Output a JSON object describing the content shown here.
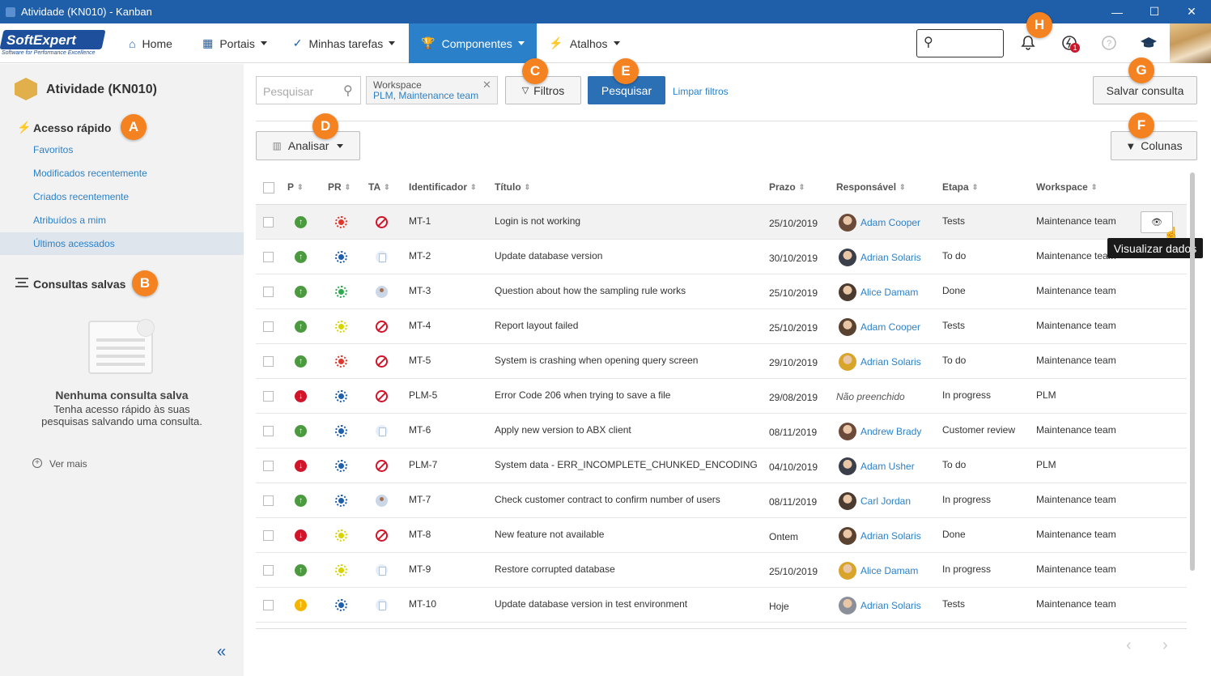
{
  "window": {
    "title": "Atividade (KN010) - Kanban",
    "minimize": "—",
    "maximize": "☐",
    "close": "✕"
  },
  "nav": {
    "logo_text": "SoftExpert",
    "logo_tagline": "Software for Performance Excellence",
    "items": [
      {
        "label": "Home"
      },
      {
        "label": "Portais"
      },
      {
        "label": "Minhas tarefas"
      },
      {
        "label": "Componentes"
      },
      {
        "label": "Atalhos"
      }
    ],
    "notification_count": "1"
  },
  "sidebar": {
    "title": "Atividade (KN010)",
    "quick_access": "Acesso rápido",
    "links": [
      "Favoritos",
      "Modificados recentemente",
      "Criados recentemente",
      "Atribuídos a mim",
      "Últimos acessados"
    ],
    "saved_queries": "Consultas salvas",
    "empty_title": "Nenhuma consulta salva",
    "empty_text_1": "Tenha acesso rápido às suas",
    "empty_text_2": "pesquisas salvando uma consulta.",
    "more": "Ver mais"
  },
  "toolbar": {
    "search_placeholder": "Pesquisar",
    "chip_label": "Workspace",
    "chip_value": "PLM, Maintenance team",
    "filters": "Filtros",
    "search": "Pesquisar",
    "clear": "Limpar filtros",
    "save_query": "Salvar consulta",
    "analyze": "Analisar",
    "columns": "Colunas"
  },
  "badges": [
    "A",
    "B",
    "C",
    "D",
    "E",
    "F",
    "G",
    "H"
  ],
  "table": {
    "headers": [
      "P",
      "PR",
      "TA",
      "Identificador",
      "Título",
      "Prazo",
      "Responsável",
      "Etapa",
      "Workspace"
    ],
    "rows": [
      {
        "p": "up",
        "pr": "red",
        "ta": "block",
        "id": "MT-1",
        "title": "Login is not working",
        "due": "25/10/2019",
        "resp": "Adam Cooper",
        "stage": "Tests",
        "ws": "Maintenance team"
      },
      {
        "p": "up",
        "pr": "blue",
        "ta": "doc",
        "id": "MT-2",
        "title": "Update database version",
        "due": "30/10/2019",
        "resp": "Adrian Solaris",
        "stage": "To do",
        "ws": "Maintenance team"
      },
      {
        "p": "up",
        "pr": "green",
        "ta": "user",
        "id": "MT-3",
        "title": "Question about how the sampling rule works",
        "due": "25/10/2019",
        "resp": "Alice Damam",
        "stage": "Done",
        "ws": "Maintenance team"
      },
      {
        "p": "up",
        "pr": "yellow",
        "ta": "block",
        "id": "MT-4",
        "title": "Report layout failed",
        "due": "25/10/2019",
        "resp": "Adam Cooper",
        "stage": "Tests",
        "ws": "Maintenance team"
      },
      {
        "p": "up",
        "pr": "red",
        "ta": "block",
        "id": "MT-5",
        "title": "System is crashing when opening query screen",
        "due": "29/10/2019",
        "resp": "Adrian Solaris",
        "stage": "To do",
        "ws": "Maintenance team"
      },
      {
        "p": "down",
        "pr": "blue",
        "ta": "block",
        "id": "PLM-5",
        "title": "Error Code 206 when trying to save a file",
        "due": "29/08/2019",
        "resp": "Não preenchido",
        "stage": "In progress",
        "ws": "PLM"
      },
      {
        "p": "up",
        "pr": "blue",
        "ta": "doc",
        "id": "MT-6",
        "title": "Apply new version to ABX client",
        "due": "08/11/2019",
        "resp": "Andrew Brady",
        "stage": "Customer review",
        "ws": "Maintenance team"
      },
      {
        "p": "down",
        "pr": "blue",
        "ta": "block",
        "id": "PLM-7",
        "title": "System data - ERR_INCOMPLETE_CHUNKED_ENCODING",
        "due": "04/10/2019",
        "resp": "Adam Usher",
        "stage": "To do",
        "ws": "PLM"
      },
      {
        "p": "up",
        "pr": "blue",
        "ta": "user",
        "id": "MT-7",
        "title": "Check customer contract to confirm number of users",
        "due": "08/11/2019",
        "resp": "Carl Jordan",
        "stage": "In progress",
        "ws": "Maintenance team"
      },
      {
        "p": "down",
        "pr": "yellow",
        "ta": "block",
        "id": "MT-8",
        "title": "New feature not available",
        "due": "Ontem",
        "resp": "Adrian Solaris",
        "stage": "Done",
        "ws": "Maintenance team"
      },
      {
        "p": "up",
        "pr": "yellow",
        "ta": "doc",
        "id": "MT-9",
        "title": "Restore corrupted database",
        "due": "25/10/2019",
        "resp": "Alice Damam",
        "stage": "In progress",
        "ws": "Maintenance team"
      },
      {
        "p": "warn",
        "pr": "blue",
        "ta": "doc",
        "id": "MT-10",
        "title": "Update database version in test environment",
        "due": "Hoje",
        "resp": "Adrian Solaris",
        "stage": "Tests",
        "ws": "Maintenance team"
      }
    ]
  },
  "tooltip": "Visualizar dados",
  "colors": {
    "accent": "#2b81c9",
    "titlebar": "#1f5ea8",
    "badge": "#f58220",
    "up": "#4c9a3f",
    "down": "#d0152a",
    "warn": "#f4b400"
  }
}
